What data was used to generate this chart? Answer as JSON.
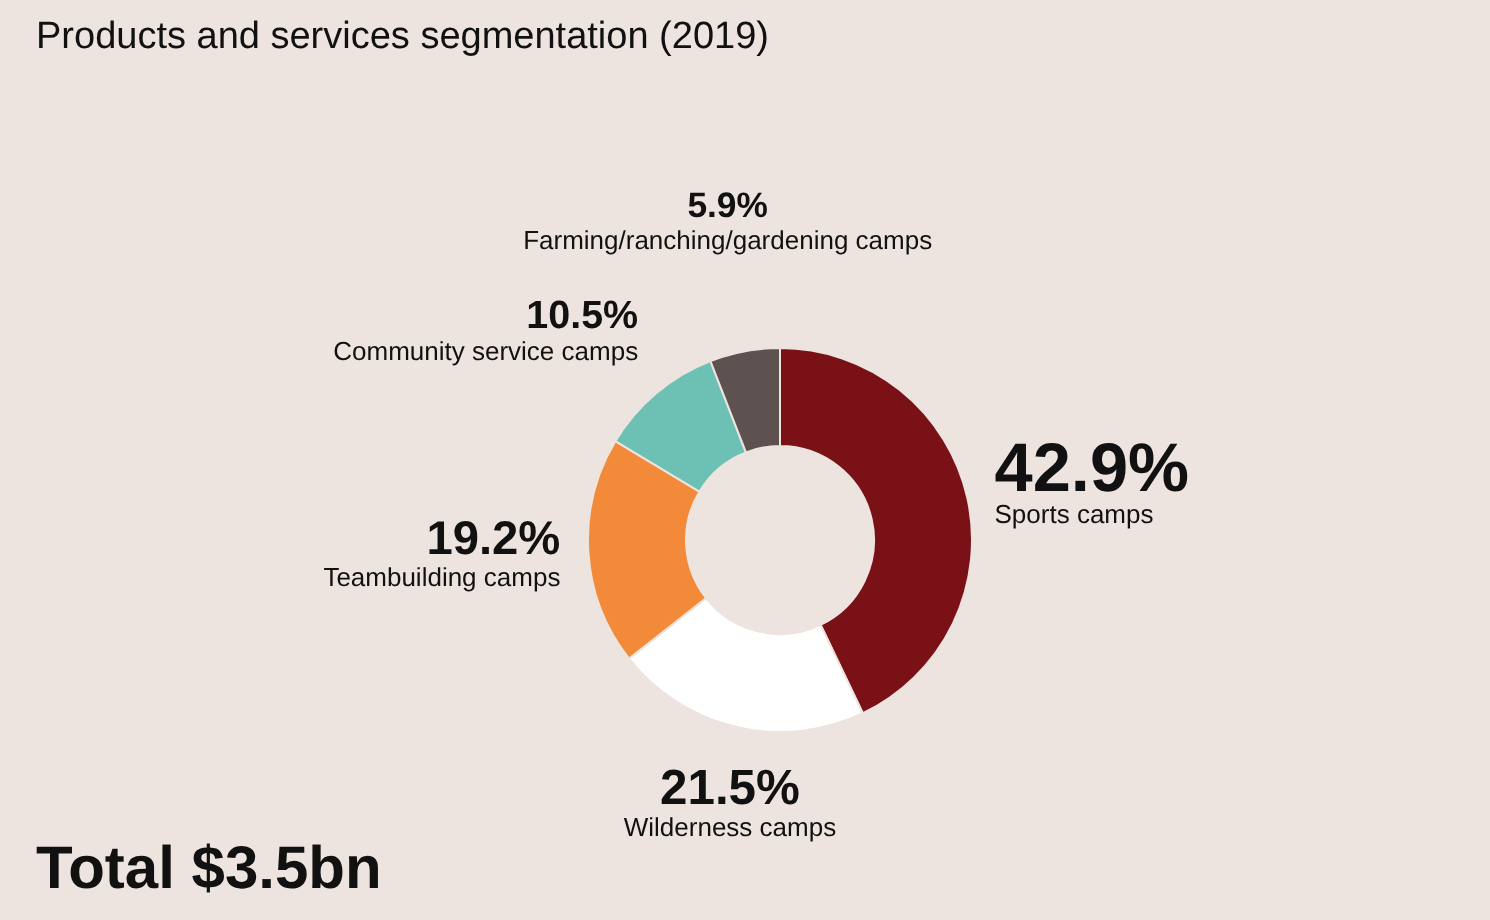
{
  "chart_data": {
    "type": "donut",
    "title": "Products and services segmentation (2019)",
    "categories": [
      "Sports camps",
      "Wilderness camps",
      "Teambuilding camps",
      "Community service camps",
      "Farming/ranching/gardening camps"
    ],
    "values": [
      42.9,
      21.5,
      19.2,
      10.5,
      5.9
    ],
    "colors": [
      "#7a1117",
      "#ffffff",
      "#f28a3a",
      "#6cc0b4",
      "#5e5250"
    ],
    "value_labels": [
      "42.9%",
      "21.5%",
      "19.2%",
      "10.5%",
      "5.9%"
    ],
    "annotations": [
      "Total $3.5bn"
    ],
    "legend": false
  }
}
